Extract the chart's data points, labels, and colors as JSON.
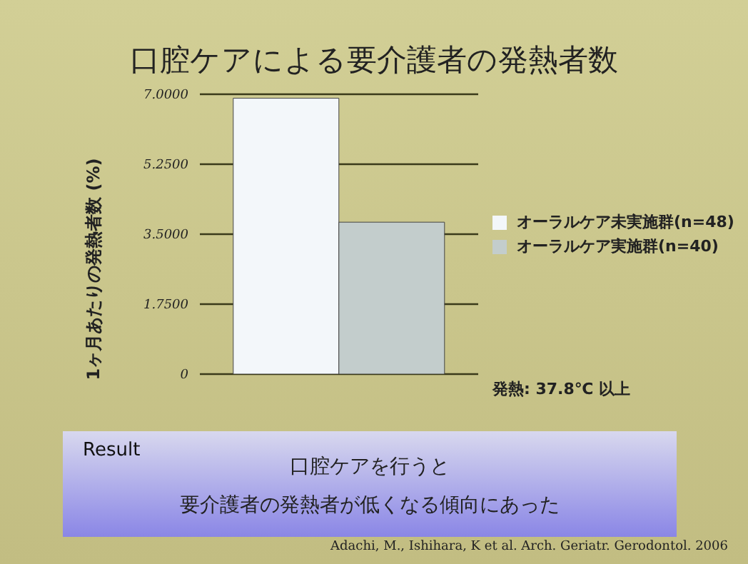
{
  "chart_data": {
    "type": "bar",
    "title": "口腔ケアによる要介護者の発熱者数",
    "ylabel": "1ヶ月あたりの発熱者数 (%)",
    "categories": [
      null
    ],
    "series": [
      {
        "name": "オーラルケア未実施群(n=48)",
        "color": "#f3f7fa",
        "values": [
          6.9
        ]
      },
      {
        "name": "オーラルケア実施群(n=40)",
        "color": "#c3cdcc",
        "values": [
          3.8
        ]
      }
    ],
    "ylim": [
      0,
      7
    ],
    "yticks": [
      0,
      {
        "value": 1.75,
        "label": "1.7500"
      },
      {
        "value": 3.5,
        "label": "3.5000"
      },
      {
        "value": 5.25,
        "label": "5.2500"
      },
      {
        "value": 7,
        "label": "7.0000"
      }
    ],
    "grid": "y",
    "legend": "right",
    "annotations": [
      "発熱: 37.8℃ 以上",
      "Result",
      "口腔ケアを行うと",
      "要介護者の発熱者が低くなる傾向にあった",
      "Adachi, M., Ishihara, K et al. Arch. Geriatr. Gerodontol. 2006"
    ]
  }
}
